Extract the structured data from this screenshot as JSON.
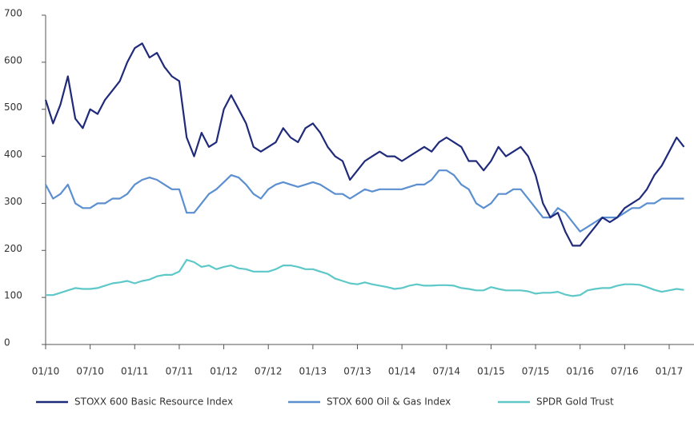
{
  "chart_data": {
    "type": "line",
    "categories": [
      "01/10",
      null,
      null,
      null,
      null,
      null,
      "07/10",
      null,
      null,
      null,
      null,
      null,
      "01/11",
      null,
      null,
      null,
      null,
      null,
      "07/11",
      null,
      null,
      null,
      null,
      null,
      "01/12",
      null,
      null,
      null,
      null,
      null,
      "07/12",
      null,
      null,
      null,
      null,
      null,
      "01/13",
      null,
      null,
      null,
      null,
      null,
      "07/13",
      null,
      null,
      null,
      null,
      null,
      "01/14",
      null,
      null,
      null,
      null,
      null,
      "07/14",
      null,
      null,
      null,
      null,
      null,
      "01/15",
      null,
      null,
      null,
      null,
      null,
      "07/15",
      null,
      null,
      null,
      null,
      null,
      "01/16",
      null,
      null,
      null,
      null,
      null,
      "07/16",
      null,
      null,
      null,
      null,
      null,
      "01/17",
      null,
      null
    ],
    "series": [
      {
        "name": "STOXX 600 Basic Resource Index",
        "color": "#1f2a7a",
        "values": [
          520,
          470,
          510,
          570,
          480,
          460,
          500,
          490,
          520,
          540,
          560,
          600,
          630,
          640,
          610,
          620,
          590,
          570,
          560,
          440,
          400,
          450,
          420,
          430,
          500,
          530,
          500,
          470,
          420,
          410,
          420,
          430,
          460,
          440,
          430,
          460,
          470,
          450,
          420,
          400,
          390,
          350,
          370,
          390,
          400,
          410,
          400,
          400,
          390,
          400,
          410,
          420,
          410,
          430,
          440,
          430,
          420,
          390,
          390,
          370,
          390,
          420,
          400,
          410,
          420,
          400,
          360,
          300,
          270,
          280,
          240,
          210,
          210,
          230,
          250,
          270,
          260,
          270,
          290,
          300,
          310,
          330,
          360,
          380,
          410,
          440,
          420
        ]
      },
      {
        "name": "STOX 600 Oil & Gas Index",
        "color": "#5b8fd0",
        "values": [
          340,
          310,
          320,
          340,
          300,
          290,
          290,
          300,
          300,
          310,
          310,
          320,
          340,
          350,
          355,
          350,
          340,
          330,
          330,
          280,
          280,
          300,
          320,
          330,
          345,
          360,
          355,
          340,
          320,
          310,
          330,
          340,
          345,
          340,
          335,
          340,
          345,
          340,
          330,
          320,
          320,
          310,
          320,
          330,
          325,
          330,
          330,
          330,
          330,
          335,
          340,
          340,
          350,
          370,
          370,
          360,
          340,
          330,
          300,
          290,
          300,
          320,
          320,
          330,
          330,
          310,
          290,
          270,
          270,
          290,
          280,
          260,
          240,
          250,
          260,
          270,
          270,
          270,
          280,
          290,
          290,
          300,
          300,
          310,
          310,
          310,
          310
        ]
      },
      {
        "name": "SPDR Gold Trust",
        "color": "#5ec8c8",
        "values": [
          105,
          105,
          110,
          115,
          120,
          118,
          118,
          120,
          125,
          130,
          132,
          135,
          130,
          135,
          138,
          145,
          148,
          148,
          155,
          180,
          175,
          165,
          168,
          160,
          165,
          168,
          162,
          160,
          155,
          155,
          155,
          160,
          168,
          168,
          165,
          160,
          160,
          155,
          150,
          140,
          135,
          130,
          128,
          132,
          128,
          125,
          122,
          118,
          120,
          125,
          128,
          125,
          125,
          126,
          126,
          125,
          120,
          118,
          115,
          115,
          122,
          118,
          115,
          115,
          115,
          113,
          108,
          110,
          110,
          112,
          106,
          103,
          105,
          115,
          118,
          120,
          120,
          125,
          128,
          128,
          127,
          122,
          116,
          112,
          115,
          118,
          116
        ]
      }
    ],
    "ylim": [
      0,
      700
    ],
    "yticks": [
      0,
      100,
      200,
      300,
      400,
      500,
      600,
      700
    ]
  }
}
